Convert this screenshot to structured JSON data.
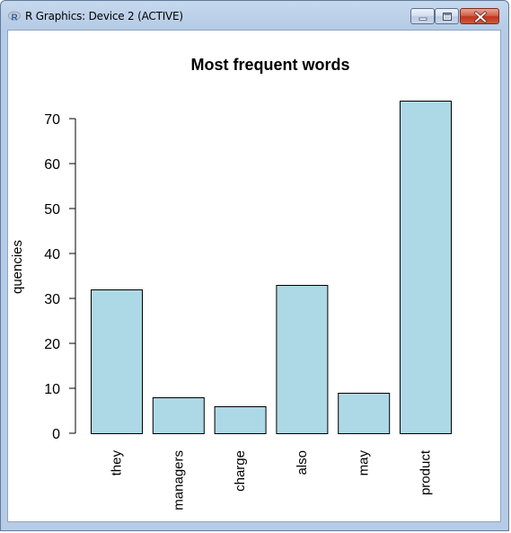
{
  "window": {
    "title": "R Graphics: Device 2 (ACTIVE)",
    "app_icon": "r-logo-icon",
    "controls": {
      "minimize_icon": "minimize-icon",
      "maximize_icon": "maximize-icon",
      "close_icon": "close-icon"
    }
  },
  "chart_data": {
    "type": "bar",
    "title": "Most frequent words",
    "ylabel": "quencies",
    "xlabel": "",
    "categories": [
      "they",
      "managers",
      "charge",
      "also",
      "may",
      "product"
    ],
    "values": [
      32,
      8,
      6,
      33,
      9,
      74
    ],
    "ylim": [
      0,
      75
    ],
    "yticks": [
      0,
      10,
      20,
      30,
      40,
      50,
      60,
      70
    ],
    "bar_color": "#add8e6",
    "grid": false,
    "legend": "none"
  }
}
